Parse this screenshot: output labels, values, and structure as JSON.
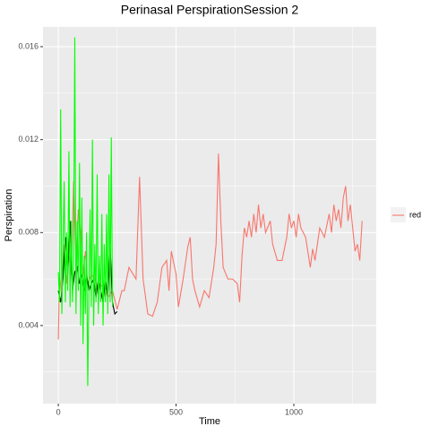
{
  "chart_data": {
    "type": "line",
    "title": "Perinasal PerspirationSession 2",
    "xlabel": "Time",
    "ylabel": "Perspiration",
    "xlim": [
      -65,
      1350
    ],
    "ylim": [
      0.00064,
      0.01685
    ],
    "xticks": [
      0,
      500,
      1000
    ],
    "yticks": [
      0.004,
      0.008,
      0.012,
      0.016
    ],
    "x_minor_ticks": [
      250,
      750,
      1250
    ],
    "y_minor_ticks": [
      0.002,
      0.006,
      0.01,
      0.014
    ],
    "grid": true,
    "legend": "right",
    "series": [
      {
        "name": "red",
        "color": "#F8766D",
        "x": [
          0,
          5,
          15,
          25,
          35,
          45,
          55,
          65,
          75,
          85,
          95,
          105,
          115,
          125,
          140,
          155,
          170,
          190,
          210,
          230,
          250,
          270,
          280,
          300,
          330,
          345,
          360,
          380,
          400,
          420,
          440,
          460,
          470,
          480,
          500,
          510,
          530,
          550,
          560,
          570,
          580,
          600,
          620,
          640,
          660,
          670,
          680,
          690,
          700,
          720,
          740,
          760,
          770,
          780,
          790,
          800,
          810,
          820,
          830,
          840,
          850,
          860,
          870,
          880,
          900,
          910,
          930,
          950,
          970,
          980,
          990,
          1000,
          1010,
          1020,
          1030,
          1050,
          1070,
          1080,
          1090,
          1100,
          1110,
          1130,
          1150,
          1160,
          1170,
          1180,
          1190,
          1200,
          1210,
          1220,
          1230,
          1240,
          1250,
          1260,
          1270,
          1280,
          1290
        ],
        "values": [
          0.0034,
          0.0062,
          0.0052,
          0.0075,
          0.0058,
          0.007,
          0.0062,
          0.0102,
          0.0068,
          0.009,
          0.008,
          0.0062,
          0.0072,
          0.0058,
          0.0062,
          0.006,
          0.0055,
          0.0058,
          0.0052,
          0.0055,
          0.0047,
          0.0055,
          0.0055,
          0.0065,
          0.006,
          0.0104,
          0.006,
          0.0045,
          0.0044,
          0.005,
          0.0065,
          0.0068,
          0.0055,
          0.0072,
          0.0062,
          0.0048,
          0.006,
          0.0074,
          0.0078,
          0.006,
          0.0055,
          0.0048,
          0.0055,
          0.0052,
          0.0065,
          0.0075,
          0.0114,
          0.0085,
          0.0065,
          0.006,
          0.006,
          0.0058,
          0.005,
          0.007,
          0.0082,
          0.0078,
          0.0085,
          0.0078,
          0.0088,
          0.008,
          0.0092,
          0.0082,
          0.0088,
          0.008,
          0.0085,
          0.0075,
          0.0068,
          0.0068,
          0.0078,
          0.0088,
          0.0082,
          0.0085,
          0.0078,
          0.0088,
          0.0082,
          0.0078,
          0.0065,
          0.0073,
          0.0068,
          0.0075,
          0.0082,
          0.0078,
          0.0088,
          0.008,
          0.0092,
          0.0085,
          0.009,
          0.0082,
          0.0095,
          0.01,
          0.0085,
          0.0092,
          0.0082,
          0.0072,
          0.0075,
          0.0068,
          0.0085
        ]
      },
      {
        "color": "#000000",
        "x": [
          0,
          10,
          20,
          30,
          40,
          50,
          60,
          70,
          80,
          90,
          100,
          110,
          120,
          130,
          140,
          150,
          160,
          170,
          180,
          190,
          200,
          210,
          220,
          230,
          240,
          250
        ],
        "values": [
          0.0055,
          0.005,
          0.006,
          0.0078,
          0.0062,
          0.0085,
          0.0055,
          0.0063,
          0.0065,
          0.0058,
          0.0062,
          0.0055,
          0.0062,
          0.0055,
          0.0058,
          0.006,
          0.0052,
          0.006,
          0.0055,
          0.005,
          0.006,
          0.0052,
          0.0074,
          0.005,
          0.0045,
          0.0046
        ]
      },
      {
        "color": "#00FF00",
        "x": [
          0,
          5,
          10,
          15,
          20,
          25,
          30,
          35,
          40,
          45,
          50,
          55,
          60,
          65,
          70,
          75,
          80,
          85,
          90,
          95,
          100,
          105,
          110,
          115,
          120,
          125,
          130,
          135,
          140,
          145,
          150,
          155,
          160,
          165,
          170,
          175,
          180,
          185,
          190,
          195,
          200,
          205,
          210,
          215,
          220,
          225,
          230
        ],
        "values": [
          0.0063,
          0.005,
          0.0133,
          0.0045,
          0.0075,
          0.0102,
          0.005,
          0.008,
          0.0055,
          0.0115,
          0.0048,
          0.0085,
          0.005,
          0.007,
          0.0164,
          0.0045,
          0.0085,
          0.0055,
          0.011,
          0.004,
          0.0095,
          0.0032,
          0.007,
          0.0045,
          0.008,
          0.0014,
          0.0055,
          0.009,
          0.0048,
          0.012,
          0.004,
          0.0075,
          0.005,
          0.0105,
          0.0045,
          0.007,
          0.005,
          0.0088,
          0.004,
          0.0075,
          0.005,
          0.0088,
          0.0045,
          0.0105,
          0.005,
          0.0121,
          0.0048
        ]
      }
    ]
  }
}
